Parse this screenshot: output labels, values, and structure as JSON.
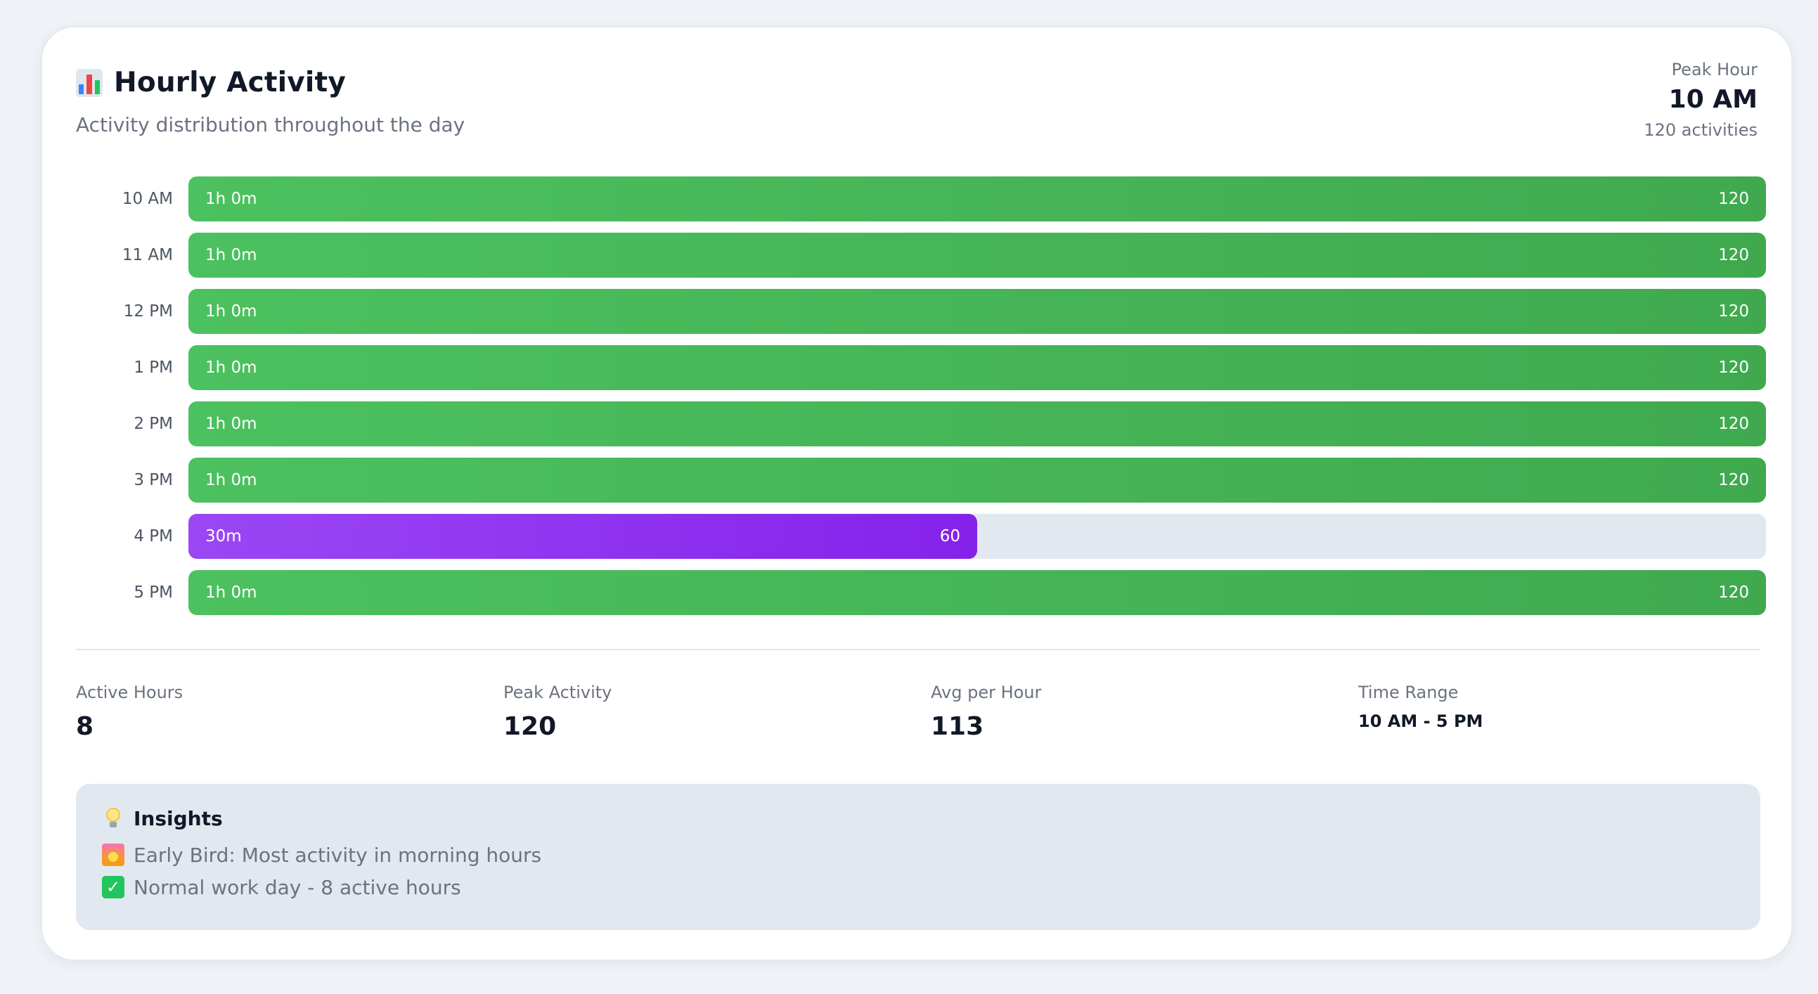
{
  "header": {
    "title": "Hourly Activity",
    "subtitle": "Activity distribution throughout the day"
  },
  "peak": {
    "label": "Peak Hour",
    "value": "10 AM",
    "count": "120 activities"
  },
  "chart_data": {
    "type": "bar",
    "orientation": "horizontal",
    "categories": [
      "10 AM",
      "11 AM",
      "12 PM",
      "1 PM",
      "2 PM",
      "3 PM",
      "4 PM",
      "5 PM"
    ],
    "values": [
      120,
      120,
      120,
      120,
      120,
      120,
      60,
      120
    ],
    "durations": [
      "1h 0m",
      "1h 0m",
      "1h 0m",
      "1h 0m",
      "1h 0m",
      "1h 0m",
      "30m",
      "1h 0m"
    ],
    "max": 120,
    "colors": [
      "#4cc15f",
      "#4cc15f",
      "#4cc15f",
      "#4cc15f",
      "#4cc15f",
      "#4cc15f",
      "#9b47f5",
      "#4cc15f"
    ],
    "title": "",
    "xlabel": "",
    "ylabel": ""
  },
  "stats": [
    {
      "label": "Active Hours",
      "value": "8"
    },
    {
      "label": "Peak Activity",
      "value": "120"
    },
    {
      "label": "Avg per Hour",
      "value": "113"
    },
    {
      "label": "Time Range",
      "value": "10 AM - 5 PM"
    }
  ],
  "insights": {
    "title": "Insights",
    "title_icon": "lightbulb-icon",
    "items": [
      {
        "icon": "sunrise-icon",
        "text": "Early Bird: Most activity in morning hours"
      },
      {
        "icon": "check-icon",
        "text": "Normal work day - 8 active hours"
      }
    ]
  },
  "colors": {
    "bar_default": "#4cc15f",
    "bar_highlight": "#9b47f5",
    "track": "#e2e8f0"
  }
}
